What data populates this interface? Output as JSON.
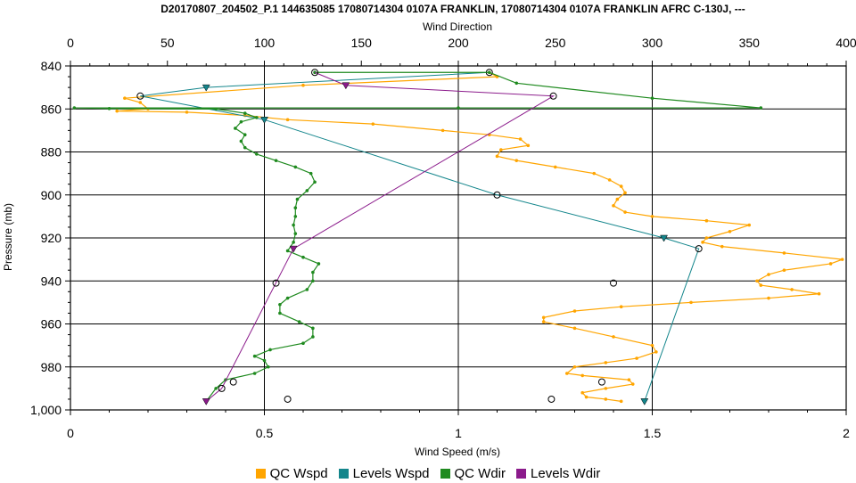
{
  "chart_data": {
    "type": "line",
    "title": "D20170807_204502_P.1 144635085 17080714304 0107A FRANKLIN, 17080714304 0107A FRANKLIN AFRC C-130J, ---",
    "xlabel_top": "Wind Direction",
    "xlabel_bottom": "Wind Speed (m/s)",
    "ylabel": "Pressure (mb)",
    "x_top_range": [
      0,
      400
    ],
    "x_bottom_range": [
      0,
      2
    ],
    "y_range": [
      840,
      1000
    ],
    "y_ticks": [
      840,
      860,
      880,
      900,
      920,
      940,
      960,
      980,
      1000
    ],
    "y_tick_labels": [
      "840",
      "860",
      "880",
      "900",
      "920",
      "940",
      "960",
      "980",
      "1,000"
    ],
    "x_top_ticks": [
      0,
      50,
      100,
      150,
      200,
      250,
      300,
      350,
      400
    ],
    "x_bottom_ticks": [
      0,
      0.5,
      1,
      1.5,
      2
    ],
    "x_bottom_tick_labels": [
      "0",
      "0.5",
      "1",
      "1.5",
      "2"
    ],
    "grid": true,
    "legend_position": "bottom",
    "series": [
      {
        "name": "QC Wspd",
        "color": "#FFA500",
        "axis": "bottom",
        "marker": "dot",
        "points": [
          [
            1.42,
            996
          ],
          [
            1.38,
            995
          ],
          [
            1.33,
            994
          ],
          [
            1.32,
            992
          ],
          [
            1.38,
            990
          ],
          [
            1.45,
            988
          ],
          [
            1.44,
            986
          ],
          [
            1.32,
            984
          ],
          [
            1.28,
            983
          ],
          [
            1.3,
            980
          ],
          [
            1.38,
            978
          ],
          [
            1.46,
            976
          ],
          [
            1.51,
            973
          ],
          [
            1.5,
            970
          ],
          [
            1.4,
            966
          ],
          [
            1.3,
            962
          ],
          [
            1.22,
            959
          ],
          [
            1.22,
            957
          ],
          [
            1.3,
            954
          ],
          [
            1.42,
            952
          ],
          [
            1.6,
            950
          ],
          [
            1.8,
            948
          ],
          [
            1.93,
            946
          ],
          [
            1.86,
            944
          ],
          [
            1.78,
            942
          ],
          [
            1.77,
            940
          ],
          [
            1.8,
            937
          ],
          [
            1.84,
            935
          ],
          [
            1.96,
            932
          ],
          [
            1.99,
            930
          ],
          [
            1.84,
            927
          ],
          [
            1.68,
            924
          ],
          [
            1.63,
            922
          ],
          [
            1.64,
            920
          ],
          [
            1.7,
            917
          ],
          [
            1.75,
            914
          ],
          [
            1.64,
            912
          ],
          [
            1.5,
            910
          ],
          [
            1.43,
            908
          ],
          [
            1.4,
            905
          ],
          [
            1.41,
            902
          ],
          [
            1.43,
            899
          ],
          [
            1.42,
            896
          ],
          [
            1.39,
            893
          ],
          [
            1.35,
            890
          ],
          [
            1.25,
            887
          ],
          [
            1.15,
            884
          ],
          [
            1.1,
            882
          ],
          [
            1.11,
            879
          ],
          [
            1.18,
            877
          ],
          [
            1.16,
            874
          ],
          [
            1.08,
            872
          ],
          [
            0.96,
            870
          ],
          [
            0.78,
            867
          ],
          [
            0.56,
            865
          ],
          [
            0.45,
            863
          ],
          [
            0.3,
            861.5
          ],
          [
            0.12,
            861
          ],
          [
            0.2,
            860
          ],
          [
            0.18,
            857
          ],
          [
            0.14,
            855
          ],
          [
            0.6,
            849
          ],
          [
            1.1,
            845
          ],
          [
            1.08,
            843
          ]
        ]
      },
      {
        "name": "Levels Wspd",
        "color": "#14868C",
        "axis": "bottom",
        "marker": "mixed",
        "points": [
          [
            1.08,
            843
          ],
          [
            0.35,
            850
          ],
          [
            0.18,
            854
          ],
          [
            0.5,
            865
          ],
          [
            1.1,
            900
          ],
          [
            1.53,
            920
          ],
          [
            1.62,
            925
          ],
          [
            1.48,
            996
          ]
        ]
      },
      {
        "name": "QC Wdir",
        "color": "#1F8A1F",
        "axis": "top",
        "marker": "dot",
        "points": [
          [
            70,
            996
          ],
          [
            75,
            990
          ],
          [
            80,
            986
          ],
          [
            95,
            983
          ],
          [
            102,
            980
          ],
          [
            100,
            977
          ],
          [
            95,
            975
          ],
          [
            103,
            972
          ],
          [
            120,
            969
          ],
          [
            125,
            966
          ],
          [
            125,
            962
          ],
          [
            118,
            959
          ],
          [
            108,
            955
          ],
          [
            108,
            951
          ],
          [
            112,
            948
          ],
          [
            122,
            944
          ],
          [
            125,
            940
          ],
          [
            125,
            936
          ],
          [
            128,
            932
          ],
          [
            120,
            929
          ],
          [
            112,
            926
          ],
          [
            115,
            922
          ],
          [
            116,
            918
          ],
          [
            115,
            914
          ],
          [
            116,
            910
          ],
          [
            116,
            906
          ],
          [
            117,
            902
          ],
          [
            122,
            898
          ],
          [
            126,
            894
          ],
          [
            124,
            890
          ],
          [
            116,
            887
          ],
          [
            106,
            884
          ],
          [
            96,
            881
          ],
          [
            90,
            878
          ],
          [
            88,
            875
          ],
          [
            90,
            872
          ],
          [
            85,
            869
          ],
          [
            88,
            866
          ],
          [
            96,
            864
          ],
          [
            90,
            862
          ],
          [
            75,
            860
          ],
          [
            20,
            859.8
          ],
          [
            2,
            859.5
          ],
          [
            200,
            859.5
          ],
          [
            356,
            859.5
          ],
          [
            300,
            855
          ],
          [
            230,
            848
          ],
          [
            216,
            843
          ],
          [
            126,
            843
          ]
        ]
      },
      {
        "name": "Levels Wdir",
        "color": "#8B1A8B",
        "axis": "top",
        "marker": "mixed",
        "points": [
          [
            126,
            843
          ],
          [
            142,
            849
          ],
          [
            249,
            854
          ],
          [
            115,
            925
          ],
          [
            78,
            990
          ],
          [
            70,
            996
          ]
        ]
      }
    ],
    "loose_markers": [
      {
        "axis": "bottom",
        "x": 0.53,
        "y": 941
      },
      {
        "axis": "bottom",
        "x": 1.4,
        "y": 941
      },
      {
        "axis": "bottom",
        "x": 0.42,
        "y": 987
      },
      {
        "axis": "bottom",
        "x": 1.37,
        "y": 987
      },
      {
        "axis": "bottom",
        "x": 0.56,
        "y": 995
      },
      {
        "axis": "bottom",
        "x": 1.24,
        "y": 995
      }
    ]
  }
}
